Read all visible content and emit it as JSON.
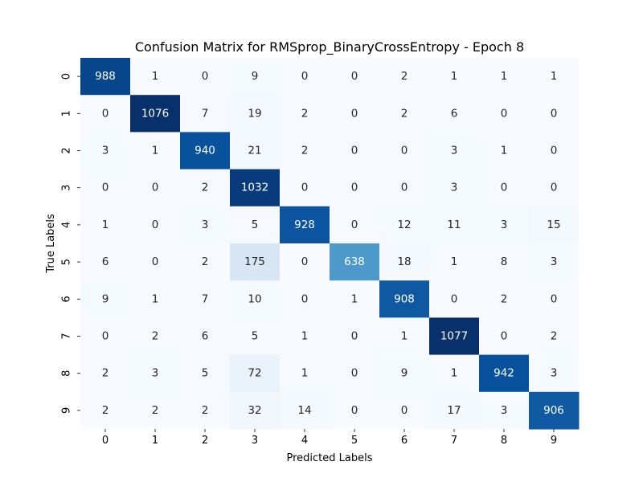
{
  "chart_data": {
    "type": "heatmap",
    "title": "Confusion Matrix for RMSprop_BinaryCrossEntropy - Epoch 8",
    "xlabel": "Predicted Labels",
    "ylabel": "True Labels",
    "x_categories": [
      "0",
      "1",
      "2",
      "3",
      "4",
      "5",
      "6",
      "7",
      "8",
      "9"
    ],
    "y_categories": [
      "0",
      "1",
      "2",
      "3",
      "4",
      "5",
      "6",
      "7",
      "8",
      "9"
    ],
    "values": [
      [
        988,
        1,
        0,
        9,
        0,
        0,
        2,
        1,
        1,
        1
      ],
      [
        0,
        1076,
        7,
        19,
        2,
        0,
        2,
        6,
        0,
        0
      ],
      [
        3,
        1,
        940,
        21,
        2,
        0,
        0,
        3,
        1,
        0
      ],
      [
        0,
        0,
        2,
        1032,
        0,
        0,
        0,
        3,
        0,
        0
      ],
      [
        1,
        0,
        3,
        5,
        928,
        0,
        12,
        11,
        3,
        15
      ],
      [
        6,
        0,
        2,
        175,
        0,
        638,
        18,
        1,
        8,
        3
      ],
      [
        9,
        1,
        7,
        10,
        0,
        1,
        908,
        0,
        2,
        0
      ],
      [
        0,
        2,
        6,
        5,
        1,
        0,
        1,
        1077,
        0,
        2
      ],
      [
        2,
        3,
        5,
        72,
        1,
        0,
        9,
        1,
        942,
        3
      ],
      [
        2,
        2,
        2,
        32,
        14,
        0,
        0,
        17,
        3,
        906
      ]
    ],
    "colormap": "Blues",
    "value_range": [
      0,
      1077
    ],
    "colorbar": false,
    "grid": false
  }
}
